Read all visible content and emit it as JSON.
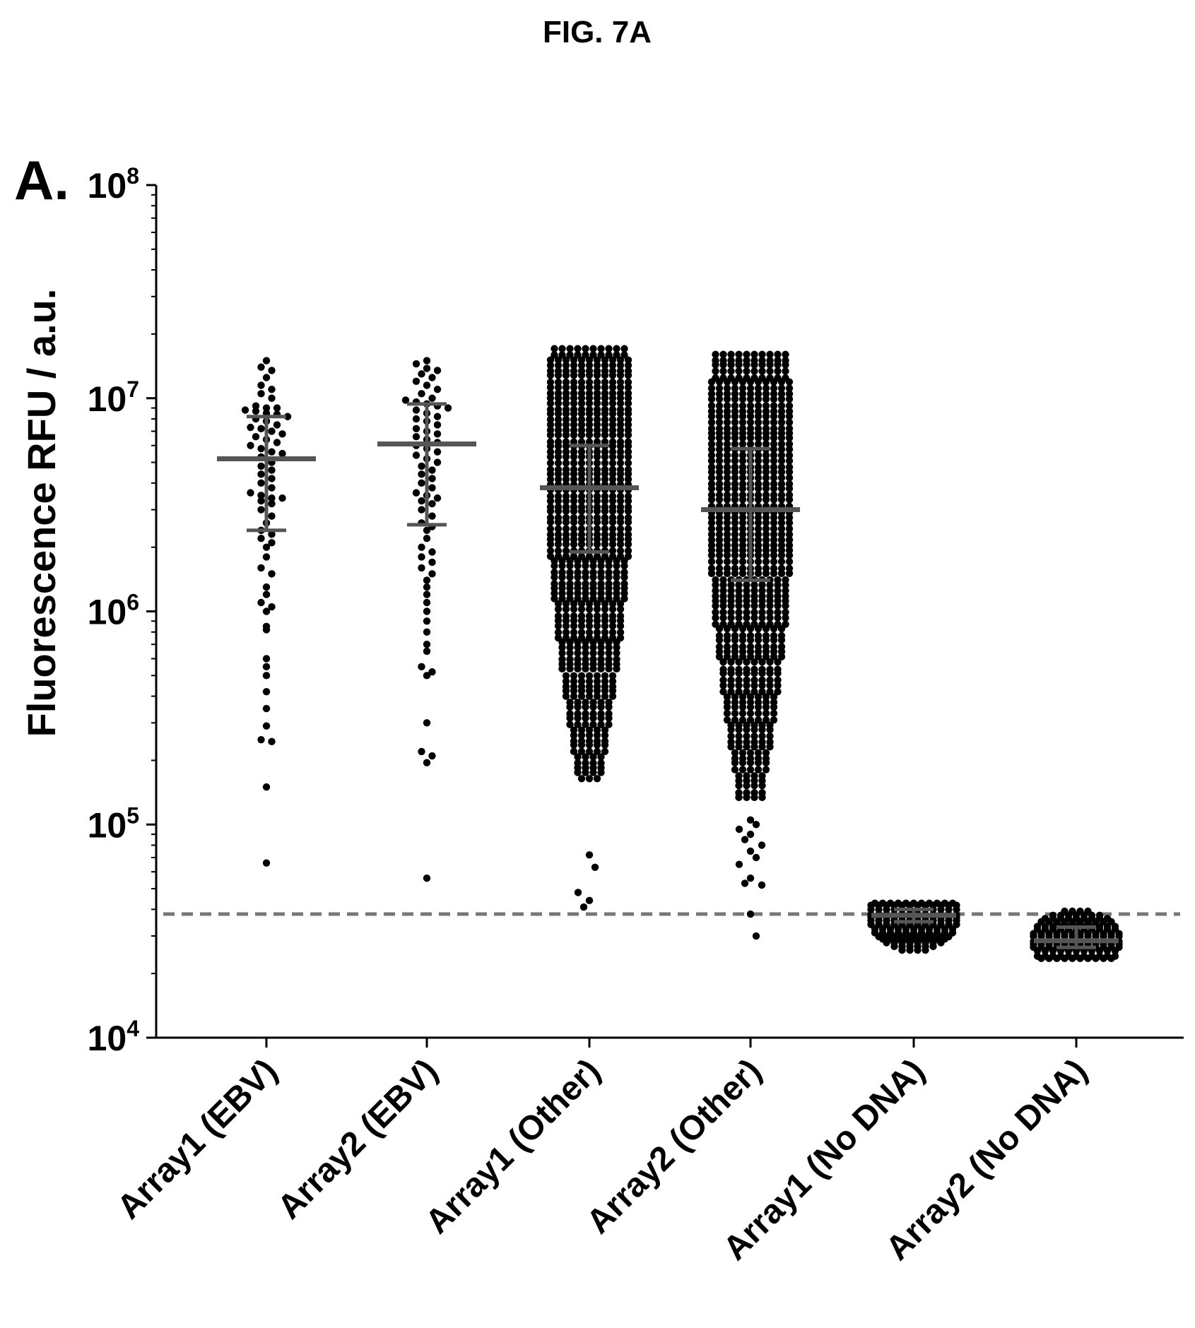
{
  "figure": {
    "title": "FIG. 7A",
    "panel_label": "A."
  },
  "chart_data": {
    "type": "scatter",
    "ylabel": "Fluorescence RFU / a.u.",
    "xlabel": "",
    "y_scale": "log",
    "ylim": [
      10000,
      100000000
    ],
    "y_ticks": [
      {
        "value": 10000,
        "base": "10",
        "exp": "4"
      },
      {
        "value": 100000,
        "base": "10",
        "exp": "5"
      },
      {
        "value": 1000000,
        "base": "10",
        "exp": "6"
      },
      {
        "value": 10000000,
        "base": "10",
        "exp": "7"
      },
      {
        "value": 100000000,
        "base": "10",
        "exp": "8"
      }
    ],
    "categories": [
      "Array1 (EBV)",
      "Array2 (EBV)",
      "Array1 (Other)",
      "Array2 (Other)",
      "Array1 (No DNA)",
      "Array2 (No DNA)"
    ],
    "threshold": {
      "value": 38000,
      "style": "dashed"
    },
    "dot_color": "#000000",
    "summary_color": "#555555",
    "grid": false,
    "legend": "none",
    "groups": [
      {
        "category": "Array1 (EBV)",
        "median": 5200000,
        "q_low": 2400000,
        "q_high": 8200000,
        "values": [
          15000000,
          14000000,
          13500000,
          12500000,
          11500000,
          11000000,
          10500000,
          10000000,
          9200000,
          9000000,
          9000000,
          8800000,
          8700000,
          8500000,
          8400000,
          8200000,
          8000000,
          7800000,
          7500000,
          7300000,
          7200000,
          7000000,
          6800000,
          6600000,
          6400000,
          6200000,
          6000000,
          5800000,
          5600000,
          5500000,
          5300000,
          5000000,
          4800000,
          4600000,
          4400000,
          4200000,
          4000000,
          3800000,
          3600000,
          3500000,
          3400000,
          3400000,
          3300000,
          3200000,
          3000000,
          2800000,
          2600000,
          2400000,
          2300000,
          2200000,
          2100000,
          2000000,
          1800000,
          1600000,
          1500000,
          1300000,
          1200000,
          1100000,
          1050000,
          1000000,
          850000,
          820000,
          600000,
          550000,
          500000,
          420000,
          350000,
          290000,
          250000,
          245000,
          150000,
          66000
        ]
      },
      {
        "category": "Array2 (EBV)",
        "median": 6100000,
        "q_low": 2550000,
        "q_high": 9400000,
        "values": [
          15000000,
          14500000,
          13800000,
          13500000,
          13000000,
          12500000,
          12000000,
          11500000,
          11000000,
          10500000,
          10000000,
          9800000,
          9600000,
          9400000,
          9200000,
          9000000,
          8800000,
          8500000,
          8200000,
          8000000,
          7800000,
          7500000,
          7200000,
          7000000,
          6800000,
          6600000,
          6400000,
          6200000,
          6000000,
          5800000,
          5600000,
          5400000,
          5200000,
          5000000,
          4800000,
          4600000,
          4400000,
          4200000,
          4000000,
          3800000,
          3600000,
          3500000,
          3400000,
          3300000,
          3200000,
          3000000,
          2800000,
          2600000,
          2500000,
          2400000,
          2200000,
          2000000,
          1900000,
          1800000,
          1700000,
          1600000,
          1500000,
          1400000,
          1300000,
          1200000,
          1100000,
          1000000,
          900000,
          800000,
          700000,
          650000,
          550000,
          520000,
          500000,
          300000,
          220000,
          210000,
          195000,
          56000
        ]
      },
      {
        "category": "Array1 (Other)",
        "median": 3800000,
        "q_low": 1900000,
        "q_high": 6000000,
        "min": 160000,
        "max": 17500000,
        "n": 700,
        "extra_values": [
          72000,
          63000,
          48000,
          44000,
          41000
        ]
      },
      {
        "category": "Array2 (Other)",
        "median": 3000000,
        "q_low": 1400000,
        "q_high": 5800000,
        "min": 130000,
        "max": 16500000,
        "n": 700,
        "extra_values": [
          105000,
          100000,
          95000,
          90000,
          85000,
          80000,
          75000,
          70000,
          65000,
          56000,
          53000,
          52000,
          38000,
          30000
        ]
      },
      {
        "category": "Array1 (No DNA)",
        "median": 37500,
        "q_low": 35000,
        "q_high": 40000,
        "min": 25000,
        "max": 44000,
        "n": 120
      },
      {
        "category": "Array2 (No DNA)",
        "median": 28500,
        "q_low": 26500,
        "q_high": 33000,
        "min": 23000,
        "max": 40000,
        "n": 130
      }
    ]
  }
}
